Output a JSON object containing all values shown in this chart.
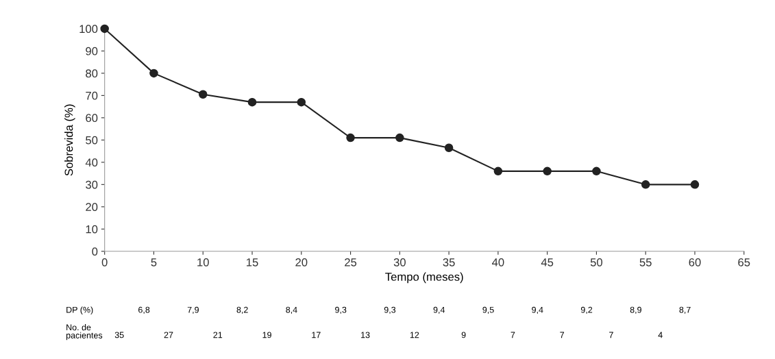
{
  "chart_data": {
    "type": "line",
    "xlabel": "Tempo (meses)",
    "ylabel": "Sobrevida (%)",
    "x": [
      0,
      5,
      10,
      15,
      20,
      25,
      30,
      35,
      40,
      45,
      50,
      55,
      60
    ],
    "series": [
      {
        "color": "#222222",
        "values": [
          100,
          80,
          70.5,
          67,
          67,
          51,
          51,
          46.5,
          36,
          36,
          36,
          30,
          30
        ]
      }
    ],
    "marker": "circle",
    "line_style": "solid",
    "grid": false,
    "xlim": [
      0,
      65
    ],
    "xticks": [
      0,
      5,
      10,
      15,
      20,
      25,
      30,
      35,
      40,
      45,
      50,
      55,
      60,
      65
    ],
    "ylim": [
      0,
      100
    ],
    "yticks": [
      0,
      10,
      20,
      30,
      40,
      50,
      60,
      70,
      80,
      90,
      100
    ],
    "annotations": [
      "DP (%)",
      "6,8",
      "7,9",
      "8,2",
      "8,4",
      "9,3",
      "9,3",
      "9,4",
      "9,5",
      "9,4",
      "9,2",
      "8,9",
      "8,7",
      "No. de\npacientes",
      "35",
      "27",
      "21",
      "19",
      "17",
      "13",
      "12",
      "9",
      "7",
      "7",
      "7",
      "4"
    ]
  }
}
